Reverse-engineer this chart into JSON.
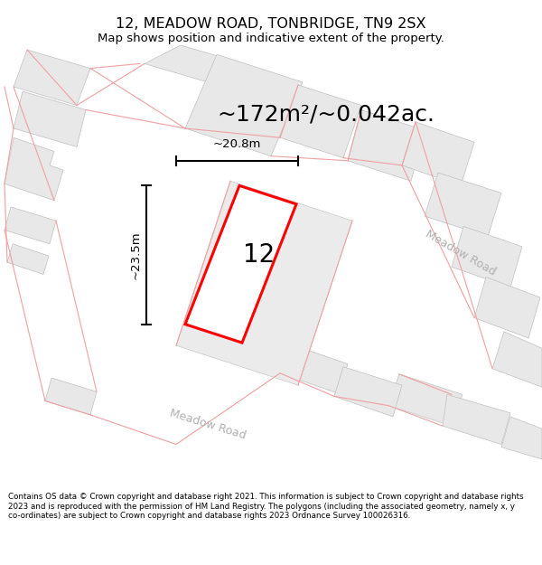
{
  "title": "12, MEADOW ROAD, TONBRIDGE, TN9 2SX",
  "subtitle": "Map shows position and indicative extent of the property.",
  "footer": "Contains OS data © Crown copyright and database right 2021. This information is subject to Crown copyright and database rights 2023 and is reproduced with the permission of HM Land Registry. The polygons (including the associated geometry, namely x, y co-ordinates) are subject to Crown copyright and database rights 2023 Ordnance Survey 100026316.",
  "area_label": "~172m²/~0.042ac.",
  "width_label": "~20.8m",
  "height_label": "~23.5m",
  "plot_number": "12",
  "bg_color": "#ffffff",
  "road_label_1": "Meadow Road",
  "road_label_2": "Meadow Road",
  "plot_color": "#ff0000",
  "building_fill": "#e8e8e8",
  "building_edge": "#c0c0c0",
  "road_line_color": "#f0a0a0",
  "road_text_color": "#b0b0b0"
}
